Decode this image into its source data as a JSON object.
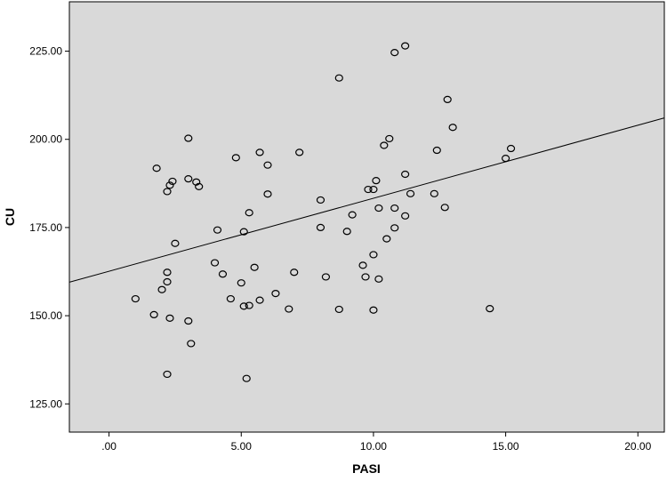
{
  "chart_data": {
    "type": "scatter",
    "title": "",
    "xlabel": "PASI",
    "ylabel": "CU",
    "xlim": [
      -1.5,
      21.0
    ],
    "ylim": [
      117.0,
      239.0
    ],
    "x_ticks": [
      ".00",
      "5.00",
      "10.00",
      "15.00",
      "20.00"
    ],
    "x_tick_values": [
      0,
      5,
      10,
      15,
      20
    ],
    "y_ticks": [
      "125.00",
      "150.00",
      "175.00",
      "200.00",
      "225.00"
    ],
    "y_tick_values": [
      125,
      150,
      175,
      200,
      225
    ],
    "grid": false,
    "legend": "none",
    "plot_background": "#d9d9d9",
    "marker_color": "#000000",
    "fit_line": {
      "intercept": 162.6,
      "slope": 2.07
    },
    "points": [
      {
        "x": 1.0,
        "y": 154.8
      },
      {
        "x": 1.7,
        "y": 150.3
      },
      {
        "x": 1.8,
        "y": 191.8
      },
      {
        "x": 2.0,
        "y": 157.4
      },
      {
        "x": 2.2,
        "y": 185.2
      },
      {
        "x": 2.2,
        "y": 162.3
      },
      {
        "x": 2.2,
        "y": 159.6
      },
      {
        "x": 2.3,
        "y": 187.0
      },
      {
        "x": 2.3,
        "y": 149.3
      },
      {
        "x": 2.4,
        "y": 188.1
      },
      {
        "x": 2.2,
        "y": 133.4
      },
      {
        "x": 2.5,
        "y": 170.5
      },
      {
        "x": 3.0,
        "y": 200.3
      },
      {
        "x": 3.0,
        "y": 188.8
      },
      {
        "x": 3.0,
        "y": 148.5
      },
      {
        "x": 3.1,
        "y": 142.1
      },
      {
        "x": 3.3,
        "y": 187.9
      },
      {
        "x": 3.4,
        "y": 186.6
      },
      {
        "x": 4.0,
        "y": 165.0
      },
      {
        "x": 4.1,
        "y": 174.3
      },
      {
        "x": 4.3,
        "y": 161.8
      },
      {
        "x": 4.6,
        "y": 154.8
      },
      {
        "x": 4.8,
        "y": 194.8
      },
      {
        "x": 5.0,
        "y": 159.3
      },
      {
        "x": 5.1,
        "y": 152.7
      },
      {
        "x": 5.1,
        "y": 173.8
      },
      {
        "x": 5.2,
        "y": 132.2
      },
      {
        "x": 5.3,
        "y": 152.9
      },
      {
        "x": 5.3,
        "y": 179.2
      },
      {
        "x": 5.5,
        "y": 163.7
      },
      {
        "x": 5.7,
        "y": 154.4
      },
      {
        "x": 5.7,
        "y": 196.3
      },
      {
        "x": 6.0,
        "y": 192.7
      },
      {
        "x": 6.0,
        "y": 184.5
      },
      {
        "x": 6.3,
        "y": 156.3
      },
      {
        "x": 6.8,
        "y": 151.9
      },
      {
        "x": 7.0,
        "y": 162.3
      },
      {
        "x": 7.2,
        "y": 196.3
      },
      {
        "x": 8.0,
        "y": 182.8
      },
      {
        "x": 8.0,
        "y": 175.0
      },
      {
        "x": 8.2,
        "y": 161.0
      },
      {
        "x": 8.7,
        "y": 217.4
      },
      {
        "x": 8.7,
        "y": 151.8
      },
      {
        "x": 9.0,
        "y": 173.9
      },
      {
        "x": 9.2,
        "y": 178.6
      },
      {
        "x": 9.6,
        "y": 164.3
      },
      {
        "x": 9.7,
        "y": 161.0
      },
      {
        "x": 9.8,
        "y": 185.8
      },
      {
        "x": 10.0,
        "y": 185.8
      },
      {
        "x": 10.0,
        "y": 167.3
      },
      {
        "x": 10.0,
        "y": 151.6
      },
      {
        "x": 10.1,
        "y": 188.3
      },
      {
        "x": 10.2,
        "y": 180.5
      },
      {
        "x": 10.2,
        "y": 160.4
      },
      {
        "x": 10.4,
        "y": 198.3
      },
      {
        "x": 10.5,
        "y": 171.8
      },
      {
        "x": 10.6,
        "y": 200.2
      },
      {
        "x": 10.8,
        "y": 224.6
      },
      {
        "x": 10.8,
        "y": 180.5
      },
      {
        "x": 10.8,
        "y": 174.9
      },
      {
        "x": 11.2,
        "y": 226.5
      },
      {
        "x": 11.2,
        "y": 190.1
      },
      {
        "x": 11.2,
        "y": 178.3
      },
      {
        "x": 11.4,
        "y": 184.6
      },
      {
        "x": 12.3,
        "y": 184.6
      },
      {
        "x": 12.4,
        "y": 196.9
      },
      {
        "x": 12.7,
        "y": 180.7
      },
      {
        "x": 12.8,
        "y": 211.3
      },
      {
        "x": 13.0,
        "y": 203.4
      },
      {
        "x": 14.4,
        "y": 152.0
      },
      {
        "x": 15.0,
        "y": 194.6
      },
      {
        "x": 15.2,
        "y": 197.4
      }
    ]
  }
}
